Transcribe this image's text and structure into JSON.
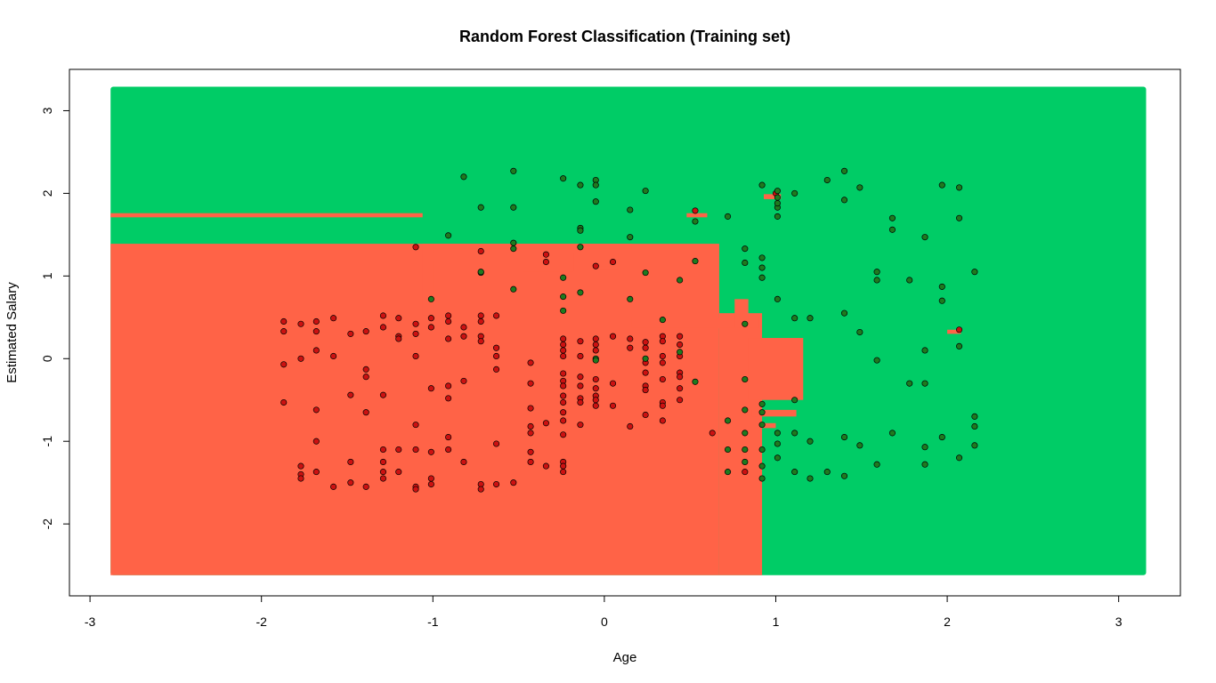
{
  "chart_data": {
    "type": "scatter",
    "title": "Random Forest Classification (Training set)",
    "xlabel": "Age",
    "ylabel": "Estimated Salary",
    "xlim": [
      -3.12,
      3.36
    ],
    "ylim": [
      -2.87,
      3.5
    ],
    "xticks": [
      -3,
      -2,
      -1,
      0,
      1,
      2,
      3
    ],
    "yticks": [
      -2,
      -1,
      0,
      1,
      2,
      3
    ],
    "grid": false,
    "colors": {
      "class_0": "#ff6347",
      "class_1": "#00cc66",
      "point_0": "#cc1111",
      "point_1": "#1f7a1f",
      "outline": "#000000"
    },
    "regions": [
      {
        "class": 0,
        "x0": -2.88,
        "x1": 0.67,
        "y0": -2.62,
        "y1": 1.39
      },
      {
        "class": 0,
        "x0": 0.67,
        "x1": 0.92,
        "y0": -2.62,
        "y1": 0.55
      },
      {
        "class": 0,
        "x0": -1.06,
        "x1": 0.16,
        "y0": 1.39,
        "y1": 1.33
      },
      {
        "class": 0,
        "x0": -1.06,
        "x1": -1.0,
        "y0": 1.39,
        "y1": 0.52
      },
      {
        "class": 0,
        "x0": 0.16,
        "x1": 0.9,
        "y0": 0.5,
        "y1": 0.37
      },
      {
        "class": 0,
        "x0": 0.84,
        "x1": 1.16,
        "y0": 0.25,
        "y1": -0.5
      },
      {
        "class": 0,
        "x0": 0.76,
        "x1": 0.84,
        "y0": 0.72,
        "y1": 0.37
      },
      {
        "class": 0,
        "x0": 0.86,
        "x1": 1.12,
        "y0": -0.62,
        "y1": -0.7
      },
      {
        "class": 0,
        "x0": -2.88,
        "x1": -1.06,
        "y0": 1.76,
        "y1": 1.71
      },
      {
        "class": 0,
        "x0": -1.06,
        "x1": 0.08,
        "y0": 1.28,
        "y1": 1.19
      },
      {
        "class": 0,
        "x0": -0.48,
        "x1": -0.18,
        "y0": 1.28,
        "y1": 1.05
      },
      {
        "class": 0,
        "x0": 0.48,
        "x1": 0.6,
        "y0": 1.76,
        "y1": 1.71
      },
      {
        "class": 0,
        "x0": 0.93,
        "x1": 1.03,
        "y0": 1.99,
        "y1": 1.93
      },
      {
        "class": 0,
        "x0": 2.0,
        "x1": 2.08,
        "y0": 0.35,
        "y1": 0.3
      },
      {
        "class": 0,
        "x0": 0.92,
        "x1": 1.0,
        "y0": -0.78,
        "y1": -0.84
      },
      {
        "class": 0,
        "x0": -0.06,
        "x1": 0.08,
        "y0": 1.12,
        "y1": 1.07
      }
    ],
    "series": [
      {
        "class": 0,
        "points": [
          [
            -1.87,
            0.45
          ],
          [
            -1.87,
            0.33
          ],
          [
            -1.87,
            -0.07
          ],
          [
            -1.87,
            -0.53
          ],
          [
            -1.77,
            0.42
          ],
          [
            -1.77,
            0.0
          ],
          [
            -1.77,
            -1.3
          ],
          [
            -1.77,
            -1.4
          ],
          [
            -1.77,
            -1.45
          ],
          [
            -1.68,
            0.45
          ],
          [
            -1.68,
            0.33
          ],
          [
            -1.68,
            0.1
          ],
          [
            -1.68,
            -0.62
          ],
          [
            -1.68,
            -1.0
          ],
          [
            -1.68,
            -1.37
          ],
          [
            -1.58,
            0.49
          ],
          [
            -1.58,
            0.03
          ],
          [
            -1.58,
            -1.55
          ],
          [
            -1.48,
            0.3
          ],
          [
            -1.48,
            -0.44
          ],
          [
            -1.48,
            -1.25
          ],
          [
            -1.48,
            -1.5
          ],
          [
            -1.39,
            0.33
          ],
          [
            -1.39,
            -0.13
          ],
          [
            -1.39,
            -0.22
          ],
          [
            -1.39,
            -0.65
          ],
          [
            -1.39,
            -1.55
          ],
          [
            -1.29,
            0.52
          ],
          [
            -1.29,
            0.38
          ],
          [
            -1.29,
            -0.44
          ],
          [
            -1.29,
            -1.1
          ],
          [
            -1.29,
            -1.25
          ],
          [
            -1.29,
            -1.37
          ],
          [
            -1.29,
            -1.45
          ],
          [
            -1.2,
            0.49
          ],
          [
            -1.2,
            0.27
          ],
          [
            -1.2,
            0.24
          ],
          [
            -1.2,
            -1.1
          ],
          [
            -1.2,
            -1.37
          ],
          [
            -1.1,
            0.42
          ],
          [
            -1.1,
            0.3
          ],
          [
            -1.1,
            0.03
          ],
          [
            -1.1,
            -0.8
          ],
          [
            -1.1,
            -1.1
          ],
          [
            -1.1,
            -1.55
          ],
          [
            -1.1,
            -1.58
          ],
          [
            -1.1,
            1.35
          ],
          [
            -1.01,
            0.49
          ],
          [
            -1.01,
            0.38
          ],
          [
            -1.01,
            -0.36
          ],
          [
            -1.01,
            -1.13
          ],
          [
            -1.01,
            -1.45
          ],
          [
            -1.01,
            -1.52
          ],
          [
            -0.91,
            0.52
          ],
          [
            -0.91,
            0.45
          ],
          [
            -0.91,
            0.24
          ],
          [
            -0.91,
            -0.33
          ],
          [
            -0.91,
            -0.48
          ],
          [
            -0.91,
            -0.95
          ],
          [
            -0.91,
            -1.1
          ],
          [
            -0.82,
            0.38
          ],
          [
            -0.82,
            0.27
          ],
          [
            -0.82,
            -0.27
          ],
          [
            -0.82,
            -1.25
          ],
          [
            -0.72,
            0.52
          ],
          [
            -0.72,
            0.45
          ],
          [
            -0.72,
            0.27
          ],
          [
            -0.72,
            0.21
          ],
          [
            -0.72,
            -1.52
          ],
          [
            -0.72,
            -1.58
          ],
          [
            -0.72,
            1.3
          ],
          [
            -0.63,
            0.52
          ],
          [
            -0.63,
            0.13
          ],
          [
            -0.63,
            0.03
          ],
          [
            -0.63,
            -0.13
          ],
          [
            -0.63,
            -1.03
          ],
          [
            -0.63,
            -1.52
          ],
          [
            -0.53,
            -1.5
          ],
          [
            -0.43,
            -0.05
          ],
          [
            -0.43,
            -0.3
          ],
          [
            -0.43,
            -0.6
          ],
          [
            -0.43,
            -0.82
          ],
          [
            -0.43,
            -0.9
          ],
          [
            -0.43,
            -1.13
          ],
          [
            -0.43,
            -1.25
          ],
          [
            -0.34,
            -0.78
          ],
          [
            -0.34,
            -1.3
          ],
          [
            -0.34,
            1.26
          ],
          [
            -0.34,
            1.17
          ],
          [
            -0.24,
            0.24
          ],
          [
            -0.24,
            0.17
          ],
          [
            -0.24,
            0.1
          ],
          [
            -0.24,
            0.03
          ],
          [
            -0.24,
            -0.18
          ],
          [
            -0.24,
            -0.27
          ],
          [
            -0.24,
            -0.33
          ],
          [
            -0.24,
            -0.45
          ],
          [
            -0.24,
            -0.53
          ],
          [
            -0.24,
            -0.65
          ],
          [
            -0.24,
            -0.75
          ],
          [
            -0.24,
            -0.92
          ],
          [
            -0.24,
            -1.25
          ],
          [
            -0.24,
            -1.3
          ],
          [
            -0.24,
            -1.37
          ],
          [
            -0.14,
            0.21
          ],
          [
            -0.14,
            0.03
          ],
          [
            -0.14,
            -0.22
          ],
          [
            -0.14,
            -0.33
          ],
          [
            -0.14,
            -0.48
          ],
          [
            -0.14,
            -0.53
          ],
          [
            -0.14,
            -0.8
          ],
          [
            -0.05,
            0.24
          ],
          [
            -0.05,
            0.17
          ],
          [
            -0.05,
            0.1
          ],
          [
            -0.05,
            -0.25
          ],
          [
            -0.05,
            -0.36
          ],
          [
            -0.05,
            -0.45
          ],
          [
            -0.05,
            -0.5
          ],
          [
            -0.05,
            -0.57
          ],
          [
            -0.05,
            1.12
          ],
          [
            0.05,
            0.27
          ],
          [
            0.05,
            -0.3
          ],
          [
            0.05,
            -0.57
          ],
          [
            0.05,
            1.17
          ],
          [
            0.15,
            0.24
          ],
          [
            0.15,
            -0.82
          ],
          [
            0.15,
            0.13
          ],
          [
            0.24,
            0.2
          ],
          [
            0.24,
            0.13
          ],
          [
            0.24,
            -0.05
          ],
          [
            0.24,
            -0.17
          ],
          [
            0.24,
            -0.33
          ],
          [
            0.24,
            -0.38
          ],
          [
            0.24,
            -0.68
          ],
          [
            0.34,
            0.27
          ],
          [
            0.34,
            0.21
          ],
          [
            0.34,
            0.03
          ],
          [
            0.34,
            -0.05
          ],
          [
            0.34,
            -0.25
          ],
          [
            0.34,
            -0.53
          ],
          [
            0.34,
            -0.57
          ],
          [
            0.34,
            -0.75
          ],
          [
            0.44,
            0.27
          ],
          [
            0.44,
            0.17
          ],
          [
            0.44,
            0.03
          ],
          [
            0.44,
            -0.17
          ],
          [
            0.44,
            -0.22
          ],
          [
            0.44,
            -0.36
          ],
          [
            0.44,
            -0.5
          ],
          [
            0.63,
            -0.9
          ],
          [
            0.53,
            1.79
          ],
          [
            1.0,
            2.0
          ],
          [
            2.07,
            0.35
          ],
          [
            0.82,
            -1.37
          ]
        ]
      },
      {
        "class": 1,
        "points": [
          [
            -0.82,
            2.2
          ],
          [
            -0.72,
            1.83
          ],
          [
            -0.72,
            1.04
          ],
          [
            -0.53,
            2.27
          ],
          [
            -0.53,
            1.83
          ],
          [
            -0.53,
            1.4
          ],
          [
            -0.53,
            1.33
          ],
          [
            -0.53,
            0.84
          ],
          [
            -0.24,
            2.18
          ],
          [
            -0.24,
            0.98
          ],
          [
            -0.24,
            0.75
          ],
          [
            -0.24,
            0.58
          ],
          [
            -0.14,
            2.1
          ],
          [
            -0.14,
            1.58
          ],
          [
            -0.14,
            1.55
          ],
          [
            -0.14,
            1.35
          ],
          [
            -0.14,
            0.8
          ],
          [
            -0.05,
            2.16
          ],
          [
            -0.05,
            2.1
          ],
          [
            -0.05,
            1.9
          ],
          [
            -0.05,
            0.0
          ],
          [
            0.15,
            1.8
          ],
          [
            0.15,
            1.47
          ],
          [
            0.15,
            0.72
          ],
          [
            0.24,
            2.03
          ],
          [
            0.24,
            1.04
          ],
          [
            0.34,
            0.47
          ],
          [
            0.44,
            0.95
          ],
          [
            0.53,
            1.66
          ],
          [
            0.53,
            1.18
          ],
          [
            0.72,
            1.72
          ],
          [
            0.72,
            -0.75
          ],
          [
            0.72,
            -1.1
          ],
          [
            0.72,
            -1.37
          ],
          [
            0.82,
            1.33
          ],
          [
            0.82,
            1.16
          ],
          [
            0.82,
            0.42
          ],
          [
            0.82,
            -0.25
          ],
          [
            0.82,
            -0.62
          ],
          [
            0.82,
            -0.9
          ],
          [
            0.82,
            -1.1
          ],
          [
            0.82,
            -1.25
          ],
          [
            0.92,
            2.1
          ],
          [
            0.92,
            1.22
          ],
          [
            0.92,
            1.1
          ],
          [
            0.92,
            0.98
          ],
          [
            0.92,
            -0.55
          ],
          [
            0.92,
            -0.65
          ],
          [
            0.92,
            -0.8
          ],
          [
            0.92,
            -1.1
          ],
          [
            0.92,
            -1.3
          ],
          [
            0.92,
            -1.45
          ],
          [
            1.01,
            2.03
          ],
          [
            1.01,
            1.83
          ],
          [
            1.01,
            1.72
          ],
          [
            1.01,
            0.72
          ],
          [
            1.01,
            -0.9
          ],
          [
            1.01,
            -1.03
          ],
          [
            1.01,
            -1.2
          ],
          [
            1.11,
            2.0
          ],
          [
            1.11,
            0.49
          ],
          [
            1.11,
            -0.5
          ],
          [
            1.11,
            -0.9
          ],
          [
            1.11,
            -1.37
          ],
          [
            1.2,
            0.49
          ],
          [
            1.2,
            -1.0
          ],
          [
            1.2,
            -1.45
          ],
          [
            1.3,
            2.16
          ],
          [
            1.3,
            -1.37
          ],
          [
            1.4,
            2.27
          ],
          [
            1.4,
            1.92
          ],
          [
            1.4,
            0.55
          ],
          [
            1.4,
            -0.95
          ],
          [
            1.4,
            -1.42
          ],
          [
            1.49,
            2.07
          ],
          [
            1.49,
            0.32
          ],
          [
            1.49,
            -1.05
          ],
          [
            1.59,
            1.05
          ],
          [
            1.59,
            0.95
          ],
          [
            1.59,
            -0.02
          ],
          [
            1.59,
            -1.28
          ],
          [
            1.68,
            1.7
          ],
          [
            1.68,
            1.56
          ],
          [
            1.68,
            -0.9
          ],
          [
            1.78,
            0.95
          ],
          [
            1.78,
            -0.3
          ],
          [
            1.87,
            1.47
          ],
          [
            1.87,
            0.1
          ],
          [
            1.87,
            -0.3
          ],
          [
            1.87,
            -1.07
          ],
          [
            1.87,
            -1.28
          ],
          [
            1.97,
            2.1
          ],
          [
            1.97,
            0.87
          ],
          [
            1.97,
            0.7
          ],
          [
            1.97,
            -0.95
          ],
          [
            2.07,
            2.07
          ],
          [
            2.07,
            1.7
          ],
          [
            2.07,
            0.15
          ],
          [
            2.07,
            -1.2
          ],
          [
            2.16,
            1.05
          ],
          [
            2.16,
            -0.7
          ],
          [
            2.16,
            -0.82
          ],
          [
            2.16,
            -1.05
          ],
          [
            -0.05,
            -0.02
          ],
          [
            0.24,
            0.0
          ],
          [
            1.01,
            1.95
          ],
          [
            1.01,
            1.88
          ],
          [
            -1.01,
            0.72
          ],
          [
            -0.91,
            1.49
          ],
          [
            -0.72,
            1.05
          ],
          [
            0.53,
            -0.28
          ],
          [
            0.44,
            0.08
          ]
        ]
      }
    ]
  }
}
